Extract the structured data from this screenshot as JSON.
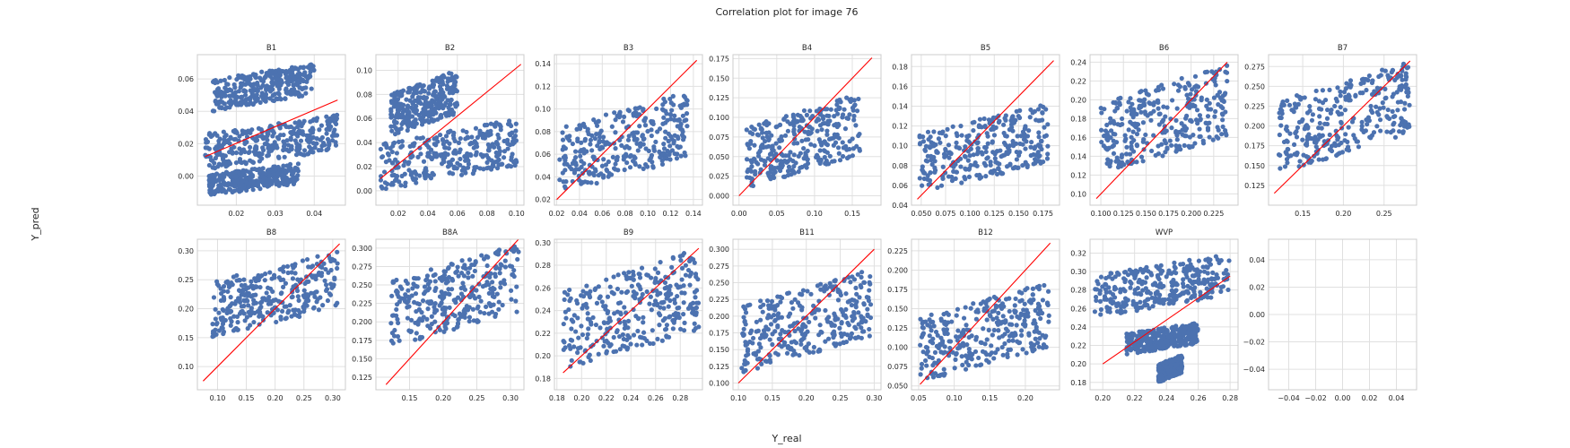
{
  "figure": {
    "title": "Correlation plot for image 76",
    "xlabel": "Y_real",
    "ylabel": "Y_pred"
  },
  "colors": {
    "points": "#4c72b0",
    "fit_line": "#ff0000",
    "grid": "#e0e0e0",
    "frame": "#cccccc"
  },
  "chart_data": [
    {
      "type": "scatter",
      "title": "B1",
      "xlim": [
        0.01,
        0.048
      ],
      "ylim": [
        -0.018,
        0.075
      ],
      "xticks": [
        "0.02",
        "0.03",
        "0.04"
      ],
      "xtick_vals": [
        0.02,
        0.03,
        0.04
      ],
      "yticks": [
        "0.00",
        "0.02",
        "0.04",
        "0.06"
      ],
      "ytick_vals": [
        0.0,
        0.02,
        0.04,
        0.06
      ],
      "line": [
        [
          0.012,
          0.012
        ],
        [
          0.046,
          0.047
        ]
      ],
      "clusters": [
        {
          "x": [
            0.012,
            0.046
          ],
          "y": [
            0.004,
            0.038
          ]
        },
        {
          "x": [
            0.014,
            0.04
          ],
          "y": [
            0.04,
            0.07
          ]
        },
        {
          "x": [
            0.013,
            0.036
          ],
          "y": [
            -0.012,
            0.008
          ]
        }
      ]
    },
    {
      "type": "scatter",
      "title": "B2",
      "xlim": [
        0.005,
        0.105
      ],
      "ylim": [
        -0.012,
        0.113
      ],
      "xticks": [
        "0.02",
        "0.04",
        "0.06",
        "0.08",
        "0.10"
      ],
      "xtick_vals": [
        0.02,
        0.04,
        0.06,
        0.08,
        0.1
      ],
      "yticks": [
        "0.00",
        "0.02",
        "0.04",
        "0.06",
        "0.08",
        "0.10"
      ],
      "ytick_vals": [
        0.0,
        0.02,
        0.04,
        0.06,
        0.08,
        0.1
      ],
      "line": [
        [
          0.008,
          0.01
        ],
        [
          0.103,
          0.105
        ]
      ],
      "clusters": [
        {
          "x": [
            0.008,
            0.1
          ],
          "y": [
            0.0,
            0.06
          ]
        },
        {
          "x": [
            0.015,
            0.06
          ],
          "y": [
            0.045,
            0.1
          ]
        }
      ]
    },
    {
      "type": "scatter",
      "title": "B3",
      "xlim": [
        0.018,
        0.148
      ],
      "ylim": [
        0.015,
        0.148
      ],
      "xticks": [
        "0.02",
        "0.04",
        "0.06",
        "0.08",
        "0.10",
        "0.12",
        "0.14"
      ],
      "xtick_vals": [
        0.02,
        0.04,
        0.06,
        0.08,
        0.1,
        0.12,
        0.14
      ],
      "yticks": [
        "0.02",
        "0.04",
        "0.06",
        "0.08",
        "0.10",
        "0.12",
        "0.14"
      ],
      "ytick_vals": [
        0.02,
        0.04,
        0.06,
        0.08,
        0.1,
        0.12,
        0.14
      ],
      "line": [
        [
          0.02,
          0.02
        ],
        [
          0.143,
          0.143
        ]
      ],
      "clusters": [
        {
          "x": [
            0.022,
            0.135
          ],
          "y": [
            0.025,
            0.115
          ]
        }
      ]
    },
    {
      "type": "scatter",
      "title": "B4",
      "xlim": [
        -0.008,
        0.188
      ],
      "ylim": [
        -0.012,
        0.18
      ],
      "xticks": [
        "0.00",
        "0.05",
        "0.10",
        "0.15"
      ],
      "xtick_vals": [
        0.0,
        0.05,
        0.1,
        0.15
      ],
      "yticks": [
        "0.000",
        "0.025",
        "0.050",
        "0.075",
        "0.100",
        "0.125",
        "0.150",
        "0.175"
      ],
      "ytick_vals": [
        0.0,
        0.025,
        0.05,
        0.075,
        0.1,
        0.125,
        0.15,
        0.175
      ],
      "line": [
        [
          0.0,
          0.0
        ],
        [
          0.176,
          0.176
        ]
      ],
      "clusters": [
        {
          "x": [
            0.01,
            0.16
          ],
          "y": [
            0.01,
            0.13
          ]
        }
      ]
    },
    {
      "type": "scatter",
      "title": "B5",
      "xlim": [
        0.04,
        0.192
      ],
      "ylim": [
        0.04,
        0.192
      ],
      "xticks": [
        "0.050",
        "0.075",
        "0.100",
        "0.125",
        "0.150",
        "0.175"
      ],
      "xtick_vals": [
        0.05,
        0.075,
        0.1,
        0.125,
        0.15,
        0.175
      ],
      "yticks": [
        "0.04",
        "0.06",
        "0.08",
        "0.10",
        "0.12",
        "0.14",
        "0.16",
        "0.18"
      ],
      "ytick_vals": [
        0.04,
        0.06,
        0.08,
        0.1,
        0.12,
        0.14,
        0.16,
        0.18
      ],
      "line": [
        [
          0.046,
          0.046
        ],
        [
          0.186,
          0.186
        ]
      ],
      "clusters": [
        {
          "x": [
            0.048,
            0.18
          ],
          "y": [
            0.05,
            0.145
          ]
        }
      ]
    },
    {
      "type": "scatter",
      "title": "B6",
      "xlim": [
        0.088,
        0.252
      ],
      "ylim": [
        0.088,
        0.248
      ],
      "xticks": [
        "0.100",
        "0.125",
        "0.150",
        "0.175",
        "0.200",
        "0.225"
      ],
      "xtick_vals": [
        0.1,
        0.125,
        0.15,
        0.175,
        0.2,
        0.225
      ],
      "yticks": [
        "0.10",
        "0.12",
        "0.14",
        "0.16",
        "0.18",
        "0.20",
        "0.22",
        "0.24"
      ],
      "ytick_vals": [
        0.1,
        0.12,
        0.14,
        0.16,
        0.18,
        0.2,
        0.22,
        0.24
      ],
      "line": [
        [
          0.095,
          0.095
        ],
        [
          0.24,
          0.24
        ]
      ],
      "clusters": [
        {
          "x": [
            0.1,
            0.24
          ],
          "y": [
            0.12,
            0.238
          ]
        }
      ]
    },
    {
      "type": "scatter",
      "title": "B7",
      "xlim": [
        0.108,
        0.29
      ],
      "ylim": [
        0.1,
        0.29
      ],
      "xticks": [
        "0.15",
        "0.20",
        "0.25"
      ],
      "xtick_vals": [
        0.15,
        0.2,
        0.25
      ],
      "yticks": [
        "0.125",
        "0.150",
        "0.175",
        "0.200",
        "0.225",
        "0.250",
        "0.275"
      ],
      "ytick_vals": [
        0.125,
        0.15,
        0.175,
        0.2,
        0.225,
        0.25,
        0.275
      ],
      "line": [
        [
          0.115,
          0.115
        ],
        [
          0.282,
          0.282
        ]
      ],
      "clusters": [
        {
          "x": [
            0.12,
            0.282
          ],
          "y": [
            0.14,
            0.282
          ]
        }
      ]
    },
    {
      "type": "scatter",
      "title": "B8",
      "xlim": [
        0.065,
        0.322
      ],
      "ylim": [
        0.06,
        0.32
      ],
      "xticks": [
        "0.10",
        "0.15",
        "0.20",
        "0.25",
        "0.30"
      ],
      "xtick_vals": [
        0.1,
        0.15,
        0.2,
        0.25,
        0.3
      ],
      "yticks": [
        "0.10",
        "0.15",
        "0.20",
        "0.25",
        "0.30"
      ],
      "ytick_vals": [
        0.1,
        0.15,
        0.2,
        0.25,
        0.3
      ],
      "line": [
        [
          0.075,
          0.075
        ],
        [
          0.312,
          0.312
        ]
      ],
      "clusters": [
        {
          "x": [
            0.09,
            0.31
          ],
          "y": [
            0.15,
            0.3
          ]
        }
      ]
    },
    {
      "type": "scatter",
      "title": "B8A",
      "xlim": [
        0.1,
        0.32
      ],
      "ylim": [
        0.108,
        0.312
      ],
      "xticks": [
        "0.15",
        "0.20",
        "0.25",
        "0.30"
      ],
      "xtick_vals": [
        0.15,
        0.2,
        0.25,
        0.3
      ],
      "yticks": [
        "0.125",
        "0.150",
        "0.175",
        "0.200",
        "0.225",
        "0.250",
        "0.275",
        "0.300"
      ],
      "ytick_vals": [
        0.125,
        0.15,
        0.175,
        0.2,
        0.225,
        0.25,
        0.275,
        0.3
      ],
      "line": [
        [
          0.115,
          0.115
        ],
        [
          0.312,
          0.312
        ]
      ],
      "clusters": [
        {
          "x": [
            0.12,
            0.312
          ],
          "y": [
            0.165,
            0.305
          ]
        }
      ]
    },
    {
      "type": "scatter",
      "title": "B9",
      "xlim": [
        0.178,
        0.298
      ],
      "ylim": [
        0.17,
        0.303
      ],
      "xticks": [
        "0.18",
        "0.20",
        "0.22",
        "0.24",
        "0.26",
        "0.28"
      ],
      "xtick_vals": [
        0.18,
        0.2,
        0.22,
        0.24,
        0.26,
        0.28
      ],
      "yticks": [
        "0.18",
        "0.20",
        "0.22",
        "0.24",
        "0.26",
        "0.28",
        "0.30"
      ],
      "ytick_vals": [
        0.18,
        0.2,
        0.22,
        0.24,
        0.26,
        0.28,
        0.3
      ],
      "line": [
        [
          0.185,
          0.185
        ],
        [
          0.295,
          0.295
        ]
      ],
      "clusters": [
        {
          "x": [
            0.185,
            0.295
          ],
          "y": [
            0.185,
            0.295
          ]
        }
      ]
    },
    {
      "type": "scatter",
      "title": "B11",
      "xlim": [
        0.092,
        0.31
      ],
      "ylim": [
        0.09,
        0.315
      ],
      "xticks": [
        "0.10",
        "0.15",
        "0.20",
        "0.25",
        "0.30"
      ],
      "xtick_vals": [
        0.1,
        0.15,
        0.2,
        0.25,
        0.3
      ],
      "yticks": [
        "0.100",
        "0.125",
        "0.150",
        "0.175",
        "0.200",
        "0.225",
        "0.250",
        "0.275",
        "0.300"
      ],
      "ytick_vals": [
        0.1,
        0.125,
        0.15,
        0.175,
        0.2,
        0.225,
        0.25,
        0.275,
        0.3
      ],
      "line": [
        [
          0.1,
          0.1
        ],
        [
          0.3,
          0.3
        ]
      ],
      "clusters": [
        {
          "x": [
            0.105,
            0.295
          ],
          "y": [
            0.115,
            0.27
          ]
        }
      ]
    },
    {
      "type": "scatter",
      "title": "B12",
      "xlim": [
        0.04,
        0.248
      ],
      "ylim": [
        0.045,
        0.24
      ],
      "xticks": [
        "0.05",
        "0.10",
        "0.15",
        "0.20"
      ],
      "xtick_vals": [
        0.05,
        0.1,
        0.15,
        0.2
      ],
      "yticks": [
        "0.050",
        "0.075",
        "0.100",
        "0.125",
        "0.150",
        "0.175",
        "0.200",
        "0.225"
      ],
      "ytick_vals": [
        0.05,
        0.075,
        0.1,
        0.125,
        0.15,
        0.175,
        0.2,
        0.225
      ],
      "line": [
        [
          0.052,
          0.052
        ],
        [
          0.235,
          0.235
        ]
      ],
      "clusters": [
        {
          "x": [
            0.052,
            0.235
          ],
          "y": [
            0.055,
            0.185
          ]
        }
      ]
    },
    {
      "type": "scatter",
      "title": "WVP",
      "xlim": [
        0.192,
        0.285
      ],
      "ylim": [
        0.172,
        0.335
      ],
      "xticks": [
        "0.20",
        "0.22",
        "0.24",
        "0.26",
        "0.28"
      ],
      "xtick_vals": [
        0.2,
        0.22,
        0.24,
        0.26,
        0.28
      ],
      "yticks": [
        "0.18",
        "0.20",
        "0.22",
        "0.24",
        "0.26",
        "0.28",
        "0.30",
        "0.32"
      ],
      "ytick_vals": [
        0.18,
        0.2,
        0.22,
        0.24,
        0.26,
        0.28,
        0.3,
        0.32
      ],
      "line": [
        [
          0.2,
          0.2
        ],
        [
          0.28,
          0.295
        ]
      ],
      "clusters": [
        {
          "x": [
            0.195,
            0.28
          ],
          "y": [
            0.25,
            0.32
          ]
        },
        {
          "x": [
            0.215,
            0.26
          ],
          "y": [
            0.21,
            0.245
          ]
        },
        {
          "x": [
            0.235,
            0.25
          ],
          "y": [
            0.18,
            0.21
          ]
        }
      ]
    },
    {
      "type": "scatter",
      "title": "",
      "xlim": [
        -0.055,
        0.055
      ],
      "ylim": [
        -0.055,
        0.055
      ],
      "xticks": [
        "−0.04",
        "−0.02",
        "0.00",
        "0.02",
        "0.04"
      ],
      "xtick_vals": [
        -0.04,
        -0.02,
        0.0,
        0.02,
        0.04
      ],
      "yticks": [
        "−0.04",
        "−0.02",
        "0.00",
        "0.02",
        "0.04"
      ],
      "ytick_vals": [
        -0.04,
        -0.02,
        0.0,
        0.02,
        0.04
      ],
      "line": [],
      "clusters": []
    }
  ]
}
